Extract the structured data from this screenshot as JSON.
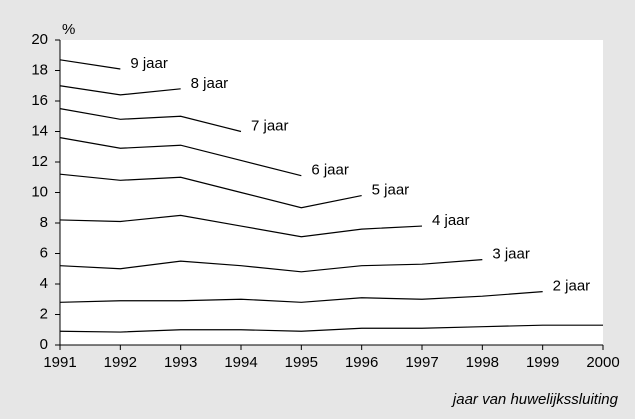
{
  "chart_data": {
    "type": "line",
    "y_label": "%",
    "x_label": "jaar van huwelijkssluiting",
    "x": [
      1991,
      1992,
      1993,
      1994,
      1995,
      1996,
      1997,
      1998,
      1999,
      2000
    ],
    "xlim": [
      1991,
      2000
    ],
    "xticks": [
      1991,
      1992,
      1993,
      1994,
      1995,
      1996,
      1997,
      1998,
      1999,
      2000
    ],
    "ylim": [
      0,
      20
    ],
    "yticks": [
      0,
      2,
      4,
      6,
      8,
      10,
      12,
      14,
      16,
      18,
      20
    ],
    "grid": false,
    "series": [
      {
        "color": "#000000",
        "values": [
          0.9,
          0.85,
          1.0,
          1.0,
          0.9,
          1.1,
          1.1,
          1.2,
          1.3,
          1.3
        ]
      },
      {
        "name": "2 jaar",
        "color": "#000000",
        "values": [
          2.8,
          2.9,
          2.9,
          3.0,
          2.8,
          3.1,
          3.0,
          3.2,
          3.5,
          null
        ]
      },
      {
        "name": "3 jaar",
        "color": "#000000",
        "values": [
          5.2,
          5.0,
          5.5,
          5.2,
          4.8,
          5.2,
          5.3,
          5.6,
          null,
          null
        ]
      },
      {
        "name": "4 jaar",
        "color": "#000000",
        "values": [
          8.2,
          8.1,
          8.5,
          7.8,
          7.1,
          7.6,
          7.8,
          null,
          null,
          null
        ]
      },
      {
        "name": "5 jaar",
        "color": "#000000",
        "values": [
          11.2,
          10.8,
          11.0,
          10.0,
          9.0,
          9.8,
          null,
          null,
          null,
          null
        ]
      },
      {
        "name": "6 jaar",
        "color": "#000000",
        "values": [
          13.6,
          12.9,
          13.1,
          12.1,
          11.1,
          null,
          null,
          null,
          null,
          null
        ]
      },
      {
        "name": "7 jaar",
        "color": "#000000",
        "values": [
          15.5,
          14.8,
          15.0,
          14.0,
          null,
          null,
          null,
          null,
          null,
          null
        ]
      },
      {
        "name": "8 jaar",
        "color": "#000000",
        "values": [
          17.0,
          16.4,
          16.8,
          null,
          null,
          null,
          null,
          null,
          null,
          null
        ]
      },
      {
        "name": "9 jaar",
        "color": "#000000",
        "values": [
          18.7,
          18.1,
          null,
          null,
          null,
          null,
          null,
          null,
          null,
          null
        ]
      }
    ]
  }
}
